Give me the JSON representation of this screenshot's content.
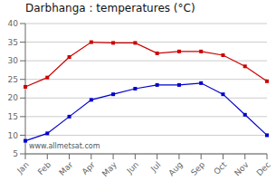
{
  "chart_data": {
    "type": "line",
    "title": "Darbhanga : temperatures (°C)",
    "categories": [
      "Jan",
      "Feb",
      "Mar",
      "Apr",
      "May",
      "Jun",
      "Jul",
      "Aug",
      "Sep",
      "Oct",
      "Nov",
      "Dec"
    ],
    "series": [
      {
        "color": "#cc0000",
        "marker": "square",
        "values": [
          23,
          25.5,
          31,
          35,
          34.8,
          34.8,
          32,
          32.5,
          32.5,
          31.5,
          28.5,
          24.5
        ]
      },
      {
        "color": "#0000cc",
        "marker": "square",
        "values": [
          8.5,
          10.5,
          15,
          19.5,
          21,
          22.5,
          23.5,
          23.5,
          24,
          21,
          15.5,
          10
        ]
      }
    ],
    "ylim": [
      5,
      40
    ],
    "yticks": [
      5,
      10,
      15,
      20,
      25,
      30,
      35,
      40
    ],
    "grid": true,
    "annotations": [
      "www.allmetsat.com"
    ]
  }
}
